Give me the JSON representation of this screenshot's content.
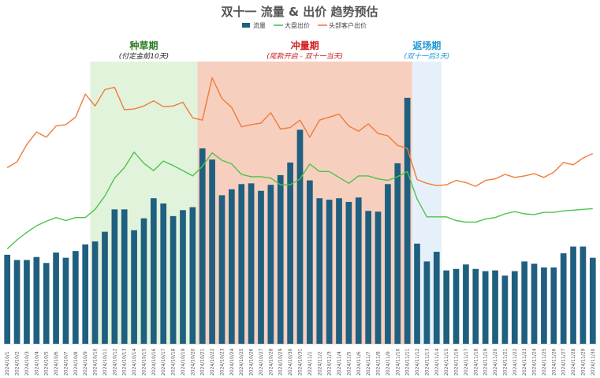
{
  "chart_data": {
    "type": "bar",
    "title": "双十一 流量 & 出价 趋势预估",
    "legend_placement": "top",
    "grid": false,
    "x": [
      "2024/10/1",
      "2024/10/2",
      "2024/10/3",
      "2024/10/4",
      "2024/10/5",
      "2024/10/6",
      "2024/10/7",
      "2024/10/8",
      "2024/10/9",
      "2024/10/10",
      "2024/10/11",
      "2024/10/12",
      "2024/10/13",
      "2024/10/14",
      "2024/10/15",
      "2024/10/16",
      "2024/10/17",
      "2024/10/18",
      "2024/10/19",
      "2024/10/20",
      "2024/10/21",
      "2024/10/22",
      "2024/10/23",
      "2024/10/24",
      "2024/10/25",
      "2024/10/26",
      "2024/10/27",
      "2024/10/28",
      "2024/10/29",
      "2024/10/30",
      "2024/10/31",
      "2024/11/1",
      "2024/11/2",
      "2024/11/3",
      "2024/11/4",
      "2024/11/5",
      "2024/11/6",
      "2024/11/7",
      "2024/11/8",
      "2024/11/9",
      "2024/11/10",
      "2024/11/11",
      "2024/11/12",
      "2024/11/13",
      "2024/11/14",
      "2024/11/15",
      "2024/11/16",
      "2024/11/17",
      "2024/11/18",
      "2024/11/19",
      "2024/11/20",
      "2024/11/21",
      "2024/11/22",
      "2024/11/23",
      "2024/11/24",
      "2024/11/25",
      "2024/11/26",
      "2024/11/27",
      "2024/11/28",
      "2024/11/29",
      "2024/11/30"
    ],
    "series": [
      {
        "name": "流量",
        "kind": "bar",
        "color": "#1f5f7f",
        "values": [
          120,
          113,
          113,
          117,
          109,
          123,
          116,
          125,
          134,
          138,
          151,
          181,
          181,
          153,
          169,
          196,
          189,
          172,
          180,
          184,
          263,
          248,
          200,
          208,
          215,
          216,
          206,
          214,
          227,
          244,
          288,
          220,
          196,
          194,
          196,
          191,
          197,
          179,
          178,
          215,
          243,
          331,
          135,
          111,
          124,
          99,
          101,
          107,
          101,
          98,
          99,
          92,
          98,
          111,
          108,
          103,
          103,
          122,
          131,
          131,
          116
        ]
      },
      {
        "name": "大盘出价",
        "kind": "line",
        "color": "#4cc44a",
        "values": [
          128,
          140,
          150,
          159,
          165,
          170,
          166,
          170,
          170,
          181,
          199,
          223,
          237,
          258,
          243,
          233,
          246,
          240,
          233,
          226,
          239,
          257,
          247,
          242,
          228,
          225,
          225,
          223,
          214,
          214,
          222,
          242,
          232,
          232,
          224,
          216,
          226,
          226,
          222,
          220,
          225,
          232,
          195,
          171,
          171,
          171,
          166,
          164,
          164,
          168,
          170,
          175,
          178,
          175,
          174,
          177,
          177,
          179,
          180,
          181,
          182
        ]
      },
      {
        "name": "头部客户出价",
        "kind": "line",
        "color": "#f07b3a",
        "values": [
          237,
          245,
          268,
          285,
          278,
          293,
          295,
          305,
          336,
          320,
          342,
          345,
          315,
          316,
          320,
          327,
          319,
          320,
          325,
          304,
          301,
          358,
          330,
          318,
          292,
          295,
          297,
          311,
          289,
          291,
          301,
          278,
          301,
          305,
          309,
          293,
          286,
          296,
          283,
          280,
          267,
          263,
          221,
          216,
          213,
          214,
          220,
          217,
          212,
          220,
          222,
          228,
          224,
          226,
          229,
          224,
          231,
          244,
          241,
          250,
          256
        ]
      }
    ],
    "ylim": [
      0,
      420
    ],
    "phases": [
      {
        "name": "种草期",
        "sub": "(付定金前10天)",
        "start": "2024/10/10",
        "end": "2024/10/20",
        "color": "#e2f3dc",
        "text_color": "#2c7a22",
        "sub_color": "#222222"
      },
      {
        "name": "冲量期",
        "sub": "(尾款开启 - 双十一当天)",
        "start": "2024/10/21",
        "end": "2024/11/11",
        "color": "#f6cfbf",
        "text_color": "#d11d1d",
        "sub_color": "#c62222"
      },
      {
        "name": "返场期",
        "sub": "(双十一后3天)",
        "start": "2024/11/12",
        "end": "2024/11/14",
        "color": "#e6f0fa",
        "text_color": "#1f97d9",
        "sub_color": "#1f97d9"
      }
    ]
  }
}
